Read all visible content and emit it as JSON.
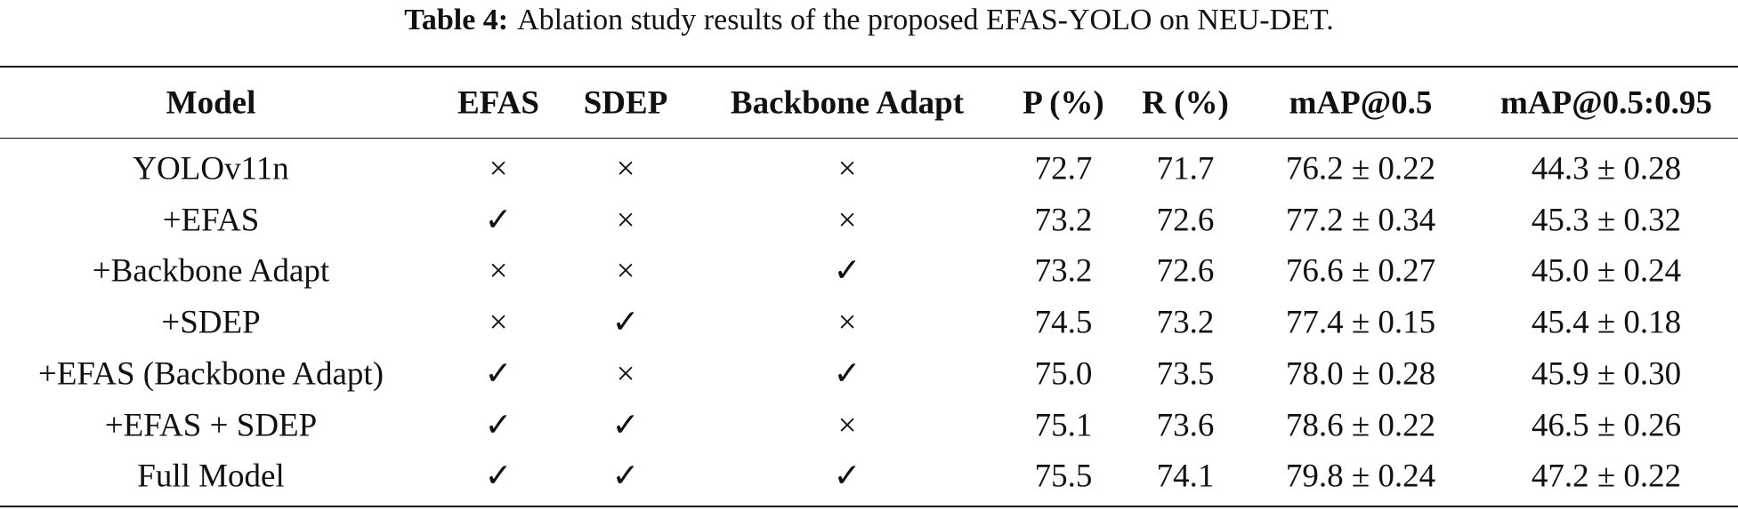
{
  "caption": {
    "label": "Table 4:",
    "text": "Ablation study results of the proposed EFAS-YOLO on NEU-DET."
  },
  "table": {
    "header": [
      "Model",
      "EFAS",
      "SDEP",
      "Backbone Adapt",
      "P (%)",
      "R (%)",
      "mAP@0.5",
      "mAP@0.5:0.95"
    ],
    "rows": [
      [
        "YOLOv11n",
        "×",
        "×",
        "×",
        "72.7",
        "71.7",
        "76.2 ± 0.22",
        "44.3 ± 0.28"
      ],
      [
        "+EFAS",
        "✓",
        "×",
        "×",
        "73.2",
        "72.6",
        "77.2 ± 0.34",
        "45.3 ± 0.32"
      ],
      [
        "+Backbone Adapt",
        "×",
        "×",
        "✓",
        "73.2",
        "72.6",
        "76.6 ± 0.27",
        "45.0 ± 0.24"
      ],
      [
        "+SDEP",
        "×",
        "✓",
        "×",
        "74.5",
        "73.2",
        "77.4 ± 0.15",
        "45.4 ± 0.18"
      ],
      [
        "+EFAS (Backbone Adapt)",
        "✓",
        "×",
        "✓",
        "75.0",
        "73.5",
        "78.0 ± 0.28",
        "45.9 ± 0.30"
      ],
      [
        "+EFAS + SDEP",
        "✓",
        "✓",
        "×",
        "75.1",
        "73.6",
        "78.6 ± 0.22",
        "46.5 ± 0.26"
      ],
      [
        "Full Model",
        "✓",
        "✓",
        "✓",
        "75.5",
        "74.1",
        "79.8 ± 0.24",
        "47.2 ± 0.22"
      ]
    ]
  }
}
